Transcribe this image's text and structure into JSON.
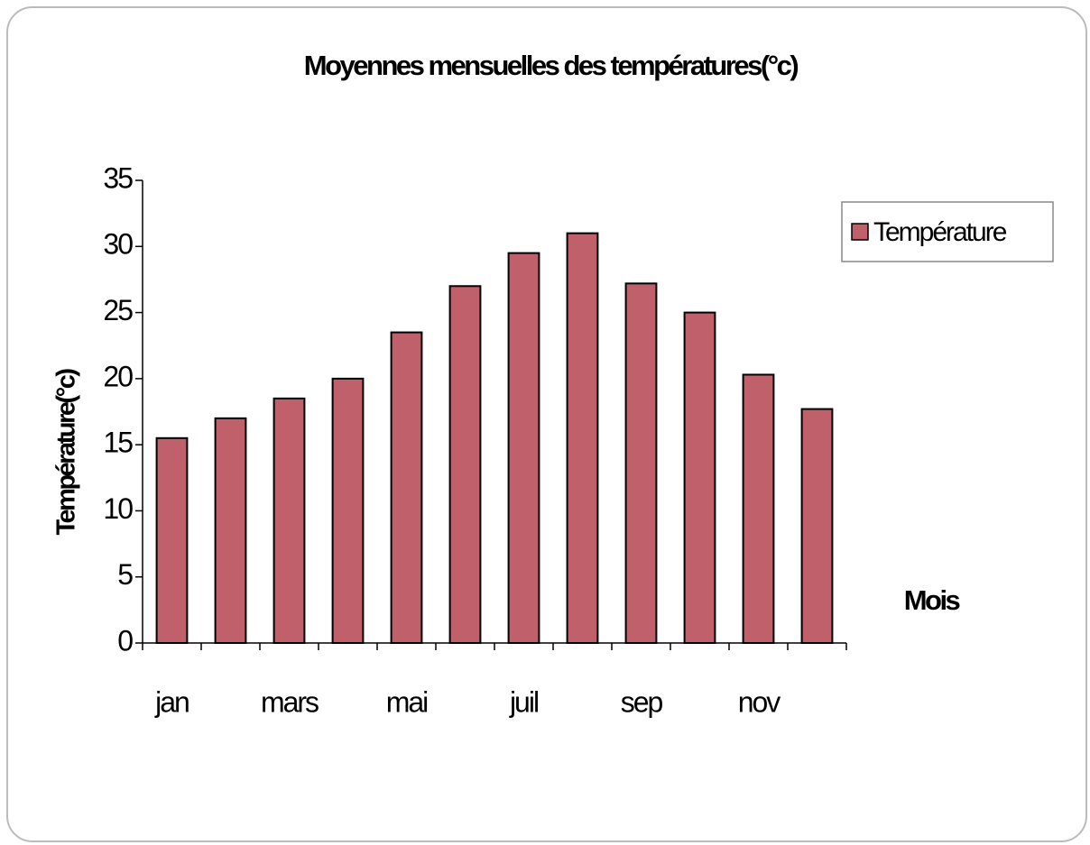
{
  "chart_data": {
    "type": "bar",
    "title": "Moyennes mensuelles des températures(°c)",
    "categories": [
      "jan",
      null,
      "mars",
      null,
      "mai",
      null,
      "juil",
      null,
      "sep",
      null,
      "nov",
      null
    ],
    "values": [
      15.5,
      17,
      18.5,
      20,
      23.5,
      27,
      29.5,
      31,
      27.2,
      25,
      20.3,
      17.7
    ],
    "series_name": "Température",
    "color": "#c0606a",
    "y_label": "Température(°c)",
    "x_label": "Mois",
    "ylim": [
      0,
      35
    ],
    "yticks": [
      0,
      5,
      10,
      15,
      20,
      25,
      30,
      35
    ],
    "grid": false,
    "legend": "right"
  }
}
